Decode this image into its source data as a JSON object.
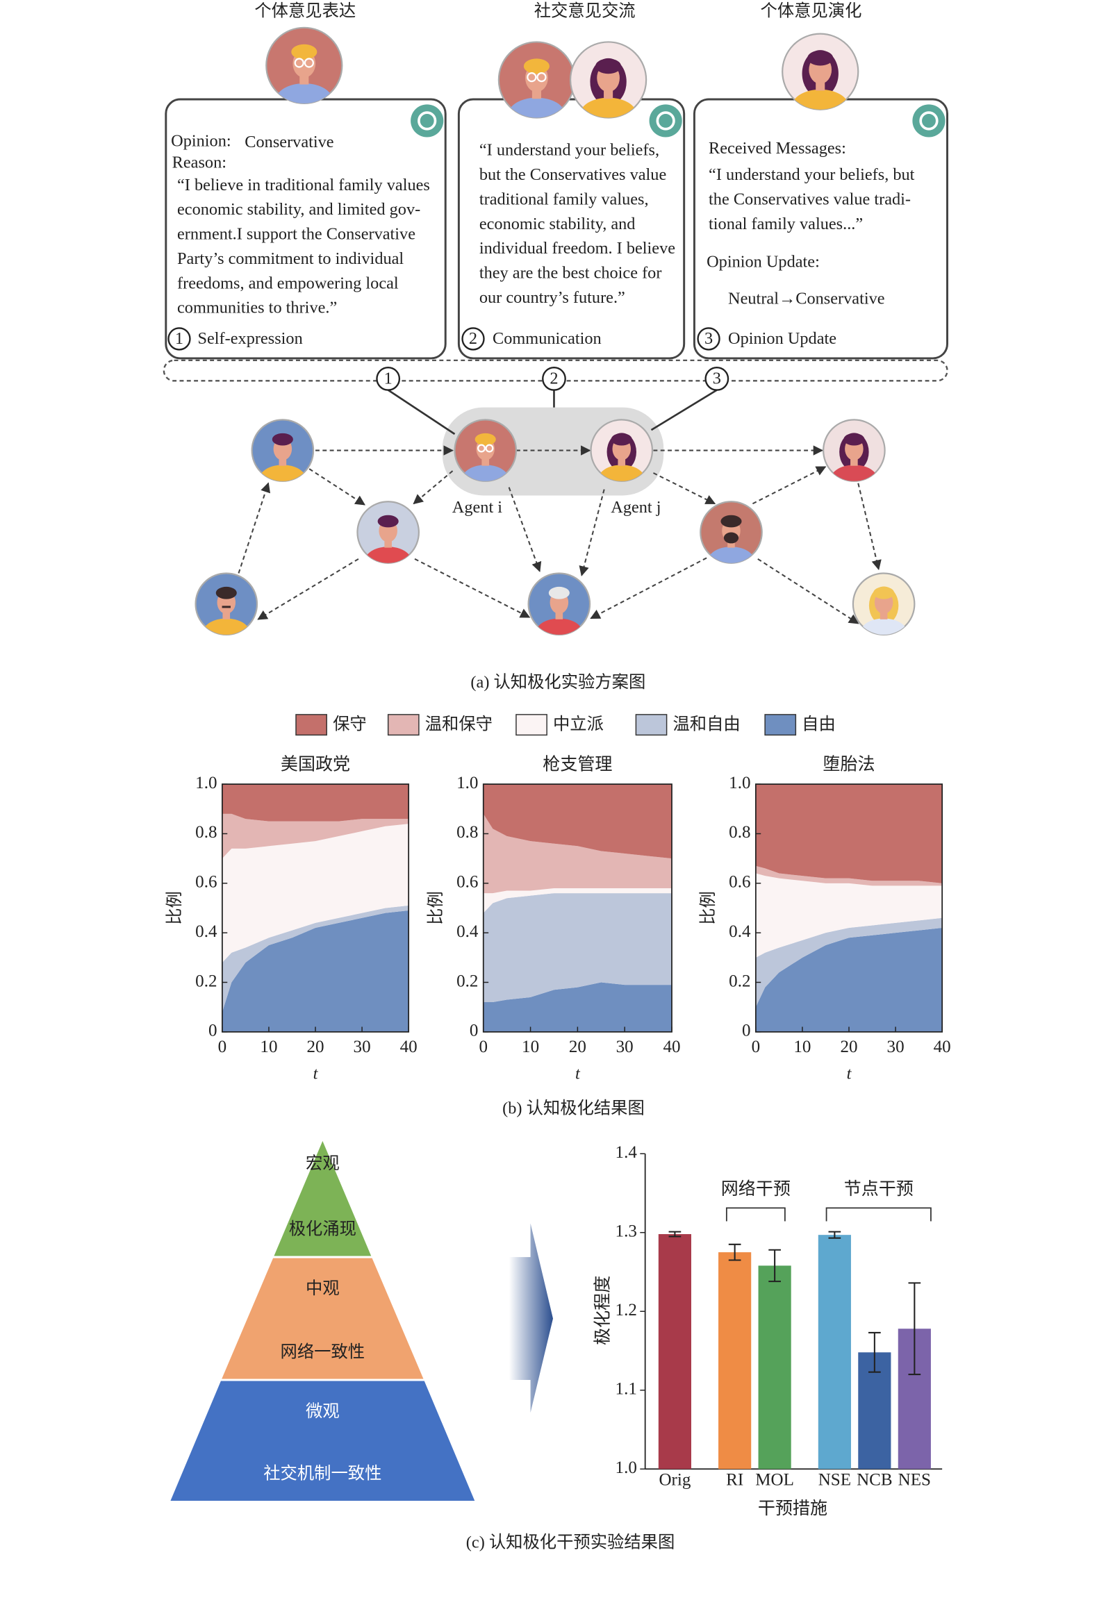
{
  "panel_a": {
    "headers": [
      "个体意见表达",
      "社交意见交流",
      "个体意见演化"
    ],
    "boxes": [
      {
        "opinion_label": "Opinion:",
        "opinion": "Conservative",
        "reason_label": "Reason:",
        "lines": [
          "“I believe in traditional family values",
          "economic stability, and limited gov-",
          "ernment.I support the Conservative",
          "Party’s commitment to individual",
          "freedoms, and empowering local",
          "communities to thrive.”"
        ],
        "step": "1",
        "step_label": "Self-expression"
      },
      {
        "lines": [
          "“I understand your beliefs,",
          "but the Conservatives value",
          "traditional family values,",
          "economic stability, and",
          "individual freedom. I believe",
          "they are the best choice for",
          "our country’s future.”"
        ],
        "step": "2",
        "step_label": "Communication"
      },
      {
        "received_label": "Received Messages:",
        "lines": [
          "“I understand your beliefs, but",
          "the Conservatives value tradi-",
          "tional family values...”"
        ],
        "update_label": "Opinion Update:",
        "update": "Neutral→Conservative",
        "step": "3",
        "step_label": "Opinion Update"
      }
    ],
    "agents": [
      "Agent i",
      "Agent j"
    ],
    "caption": "(a) 认知极化实验方案图"
  },
  "chart_data": [
    {
      "type": "stackedarea",
      "title": "美国政党",
      "x": [
        0,
        2,
        5,
        10,
        15,
        20,
        25,
        30,
        35,
        40
      ],
      "series": [
        {
          "name": "保守",
          "color": "#c4706b",
          "values": [
            0.12,
            0.12,
            0.14,
            0.15,
            0.15,
            0.15,
            0.15,
            0.14,
            0.14,
            0.14
          ]
        },
        {
          "name": "温和保守",
          "color": "#e3b6b4",
          "values": [
            0.18,
            0.14,
            0.12,
            0.1,
            0.09,
            0.08,
            0.06,
            0.05,
            0.03,
            0.02
          ]
        },
        {
          "name": "中立派",
          "color": "#fbf4f4",
          "values": [
            0.42,
            0.42,
            0.4,
            0.37,
            0.35,
            0.33,
            0.33,
            0.33,
            0.33,
            0.33
          ]
        },
        {
          "name": "温和自由",
          "color": "#bcc6da",
          "values": [
            0.2,
            0.12,
            0.06,
            0.03,
            0.03,
            0.02,
            0.02,
            0.02,
            0.02,
            0.02
          ]
        },
        {
          "name": "自由",
          "color": "#6f8fc0",
          "values": [
            0.08,
            0.2,
            0.28,
            0.35,
            0.38,
            0.42,
            0.44,
            0.46,
            0.48,
            0.49
          ]
        }
      ],
      "xlim": [
        0,
        40
      ],
      "ylim": [
        0,
        1
      ],
      "xticks": [
        0,
        10,
        20,
        30,
        40
      ],
      "yticks": [
        0,
        0.2,
        0.4,
        0.6,
        0.8,
        {
          "value": 1,
          "label": "1.0"
        }
      ],
      "xlabel": "t",
      "ylabel": "比例"
    },
    {
      "type": "stackedarea",
      "title": "枪支管理",
      "x": [
        0,
        2,
        5,
        10,
        15,
        20,
        25,
        30,
        35,
        40
      ],
      "series": [
        {
          "name": "保守",
          "color": "#c4706b",
          "values": [
            0.12,
            0.18,
            0.21,
            0.23,
            0.24,
            0.25,
            0.27,
            0.28,
            0.29,
            0.3
          ]
        },
        {
          "name": "温和保守",
          "color": "#e3b6b4",
          "values": [
            0.32,
            0.26,
            0.22,
            0.2,
            0.18,
            0.17,
            0.15,
            0.14,
            0.13,
            0.12
          ]
        },
        {
          "name": "中立派",
          "color": "#fbf4f4",
          "values": [
            0.08,
            0.04,
            0.03,
            0.02,
            0.02,
            0.02,
            0.02,
            0.02,
            0.02,
            0.02
          ]
        },
        {
          "name": "温和自由",
          "color": "#bcc6da",
          "values": [
            0.36,
            0.4,
            0.41,
            0.41,
            0.39,
            0.38,
            0.36,
            0.37,
            0.37,
            0.37
          ]
        },
        {
          "name": "自由",
          "color": "#6f8fc0",
          "values": [
            0.12,
            0.12,
            0.13,
            0.14,
            0.17,
            0.18,
            0.2,
            0.19,
            0.19,
            0.19
          ]
        }
      ],
      "xlim": [
        0,
        40
      ],
      "ylim": [
        0,
        1
      ],
      "xticks": [
        0,
        10,
        20,
        30,
        40
      ],
      "yticks": [
        0,
        0.2,
        0.4,
        0.6,
        0.8,
        {
          "value": 1,
          "label": "1.0"
        }
      ],
      "xlabel": "t",
      "ylabel": "比例"
    },
    {
      "type": "stackedarea",
      "title": "堕胎法",
      "x": [
        0,
        2,
        5,
        10,
        15,
        20,
        25,
        30,
        35,
        40
      ],
      "series": [
        {
          "name": "保守",
          "color": "#c4706b",
          "values": [
            0.33,
            0.34,
            0.36,
            0.37,
            0.38,
            0.38,
            0.39,
            0.39,
            0.39,
            0.4
          ]
        },
        {
          "name": "温和保守",
          "color": "#e3b6b4",
          "values": [
            0.03,
            0.03,
            0.02,
            0.02,
            0.02,
            0.02,
            0.02,
            0.02,
            0.02,
            0.01
          ]
        },
        {
          "name": "中立派",
          "color": "#fbf4f4",
          "values": [
            0.34,
            0.31,
            0.28,
            0.24,
            0.2,
            0.18,
            0.16,
            0.15,
            0.14,
            0.13
          ]
        },
        {
          "name": "温和自由",
          "color": "#bcc6da",
          "values": [
            0.2,
            0.14,
            0.1,
            0.07,
            0.05,
            0.04,
            0.04,
            0.04,
            0.04,
            0.04
          ]
        },
        {
          "name": "自由",
          "color": "#6f8fc0",
          "values": [
            0.1,
            0.18,
            0.24,
            0.3,
            0.35,
            0.38,
            0.39,
            0.4,
            0.41,
            0.42
          ]
        }
      ],
      "xlim": [
        0,
        40
      ],
      "ylim": [
        0,
        1
      ],
      "xticks": [
        0,
        10,
        20,
        30,
        40
      ],
      "yticks": [
        0,
        0.2,
        0.4,
        0.6,
        0.8,
        {
          "value": 1,
          "label": "1.0"
        }
      ],
      "xlabel": "t",
      "ylabel": "比例"
    },
    {
      "type": "bar",
      "categories": [
        "Orig",
        "RI",
        "MOL",
        "NSE",
        "NCB",
        "NES"
      ],
      "values": [
        1.298,
        1.275,
        1.258,
        1.297,
        1.148,
        1.178
      ],
      "errors": [
        0.003,
        0.01,
        0.02,
        0.004,
        0.025,
        0.058
      ],
      "colors": [
        "#a83a4a",
        "#ef8c45",
        "#55a25a",
        "#5ea8cf",
        "#3c63a2",
        "#7c64aa"
      ],
      "ylim": [
        1,
        1.4
      ],
      "yticks": [
        {
          "value": 1,
          "label": "1.0"
        },
        1.1,
        1.2,
        1.3,
        1.4
      ],
      "groups": [
        "网络干预",
        "节点干预"
      ],
      "xlabel": "干预措施",
      "ylabel": "极化程度"
    }
  ],
  "panel_b_caption": "(b) 认知极化结果图",
  "pyramid": {
    "levels": [
      {
        "title": "宏观",
        "subtitle": "极化涌现"
      },
      {
        "title": "中观",
        "subtitle": "网络一致性"
      },
      {
        "title": "微观",
        "subtitle": "社交机制一致性"
      }
    ]
  },
  "panel_c_caption": "(c) 认知极化干预实验结果图"
}
